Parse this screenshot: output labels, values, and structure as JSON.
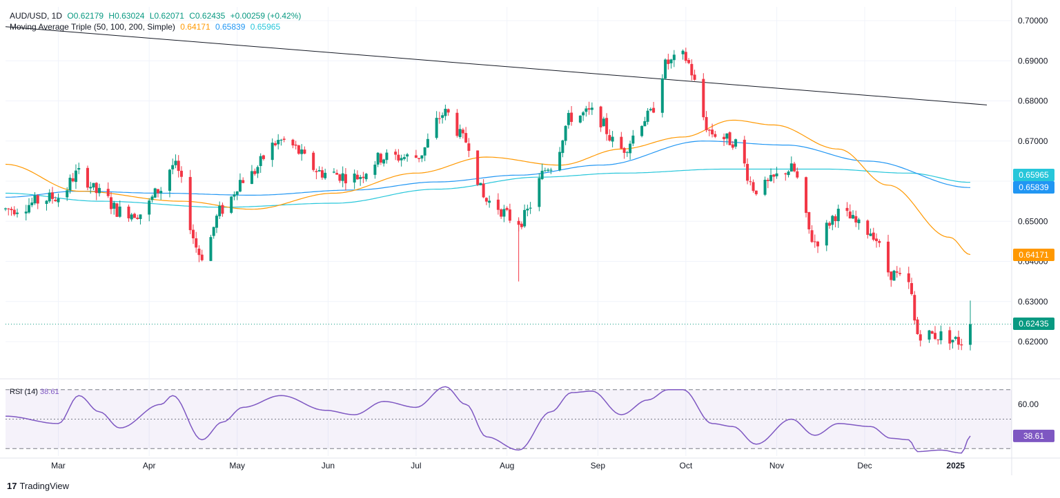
{
  "header": {
    "symbol": "AUD/USD, 1D",
    "open": "O0.62179",
    "high": "H0.63024",
    "low": "L0.62071",
    "close": "C0.62435",
    "change": "+0.00259 (+0.42%)",
    "ma_label": "Moving Average Triple (50, 100, 200, Simple)",
    "ma50": "0.64171",
    "ma100": "0.65839",
    "ma200": "0.65965"
  },
  "rsi_header": {
    "label": "RSI (14)",
    "value": "38.61"
  },
  "brand": {
    "logo_text": "TradingView"
  },
  "colors": {
    "up": "#089981",
    "down": "#f23645",
    "ma50": "#ff9800",
    "ma100": "#2196f3",
    "ma200": "#26c6da",
    "rsi": "#7e57c2",
    "trend": "#131722"
  },
  "chart_data": [
    {
      "type": "candlestick",
      "title": "AUD/USD, 1D",
      "x_labels": [
        "Mar",
        "Apr",
        "May",
        "Jun",
        "Jul",
        "Aug",
        "Sep",
        "Oct",
        "Nov",
        "Dec",
        "2025"
      ],
      "y_ticks": [
        "0.70000",
        "0.69000",
        "0.68000",
        "0.67000",
        "0.66000",
        "0.65000",
        "0.64000",
        "0.63000",
        "0.62000"
      ],
      "ylim": [
        0.6115,
        0.7015
      ],
      "last_price": "0.62435",
      "price_labels": [
        {
          "name": "ma200",
          "value": 0.65965,
          "text": "0.65965"
        },
        {
          "name": "ma100",
          "value": 0.65839,
          "text": "0.65839"
        },
        {
          "name": "ma50",
          "value": 0.64171,
          "text": "0.64171"
        },
        {
          "name": "last",
          "value": 0.62435,
          "text": "0.62435"
        }
      ],
      "trendline": {
        "start": [
          "Feb",
          0.6985
        ],
        "end": [
          "Jan 2025",
          0.679
        ]
      },
      "price_path": [
        [
          "2024-02-12",
          0.653
        ],
        [
          "2024-03-01",
          0.656
        ],
        [
          "2024-03-08",
          0.662
        ],
        [
          "2024-03-15",
          0.657
        ],
        [
          "2024-03-22",
          0.6525
        ],
        [
          "2024-03-29",
          0.652
        ],
        [
          "2024-04-05",
          0.658
        ],
        [
          "2024-04-09",
          0.664
        ],
        [
          "2024-04-19",
          0.6415
        ],
        [
          "2024-04-26",
          0.653
        ],
        [
          "2024-05-03",
          0.6605
        ],
        [
          "2024-05-16",
          0.67
        ],
        [
          "2024-05-31",
          0.662
        ],
        [
          "2024-06-10",
          0.661
        ],
        [
          "2024-06-20",
          0.666
        ],
        [
          "2024-07-01",
          0.666
        ],
        [
          "2024-07-11",
          0.677
        ],
        [
          "2024-07-18",
          0.67
        ],
        [
          "2024-07-25",
          0.655
        ],
        [
          "2024-08-05",
          0.65
        ],
        [
          "2024-08-16",
          0.664
        ],
        [
          "2024-08-23",
          0.676
        ],
        [
          "2024-08-30",
          0.677
        ],
        [
          "2024-09-09",
          0.668
        ],
        [
          "2024-09-18",
          0.676
        ],
        [
          "2024-09-25",
          0.6895
        ],
        [
          "2024-09-30",
          0.691
        ],
        [
          "2024-10-10",
          0.672
        ],
        [
          "2024-10-17",
          0.67
        ],
        [
          "2024-10-25",
          0.658
        ],
        [
          "2024-11-06",
          0.663
        ],
        [
          "2024-11-14",
          0.645
        ],
        [
          "2024-11-22",
          0.652
        ],
        [
          "2024-12-03",
          0.6475
        ],
        [
          "2024-12-10",
          0.637
        ],
        [
          "2024-12-16",
          0.634
        ],
        [
          "2024-12-19",
          0.622
        ],
        [
          "2024-12-27",
          0.6215
        ],
        [
          "2025-01-03",
          0.62
        ],
        [
          "2025-01-06",
          0.6243
        ]
      ],
      "ma50_path": [
        [
          "2024-02-12",
          0.6642
        ],
        [
          "2024-03-08",
          0.6575
        ],
        [
          "2024-04-12",
          0.655
        ],
        [
          "2024-05-06",
          0.653
        ],
        [
          "2024-06-03",
          0.657
        ],
        [
          "2024-07-01",
          0.662
        ],
        [
          "2024-07-25",
          0.666
        ],
        [
          "2024-08-19",
          0.664
        ],
        [
          "2024-09-09",
          0.668
        ],
        [
          "2024-09-30",
          0.671
        ],
        [
          "2024-10-17",
          0.6752
        ],
        [
          "2024-10-31",
          0.674
        ],
        [
          "2024-11-22",
          0.668
        ],
        [
          "2024-12-09",
          0.659
        ],
        [
          "2024-12-30",
          0.646
        ],
        [
          "2025-01-06",
          0.6417
        ]
      ],
      "ma100_path": [
        [
          "2024-02-12",
          0.656
        ],
        [
          "2024-03-08",
          0.6575
        ],
        [
          "2024-04-05",
          0.657
        ],
        [
          "2024-05-06",
          0.6565
        ],
        [
          "2024-06-10",
          0.6578
        ],
        [
          "2024-07-08",
          0.6598
        ],
        [
          "2024-08-05",
          0.6615
        ],
        [
          "2024-09-02",
          0.664
        ],
        [
          "2024-10-07",
          0.67
        ],
        [
          "2024-11-04",
          0.669
        ],
        [
          "2024-12-02",
          0.665
        ],
        [
          "2025-01-06",
          0.6584
        ]
      ],
      "ma200_path": [
        [
          "2024-02-12",
          0.657
        ],
        [
          "2024-03-15",
          0.655
        ],
        [
          "2024-04-26",
          0.6535
        ],
        [
          "2024-06-03",
          0.6545
        ],
        [
          "2024-07-08",
          0.658
        ],
        [
          "2024-08-12",
          0.661
        ],
        [
          "2024-09-09",
          0.662
        ],
        [
          "2024-10-14",
          0.663
        ],
        [
          "2024-11-18",
          0.663
        ],
        [
          "2024-12-16",
          0.662
        ],
        [
          "2025-01-06",
          0.6597
        ]
      ]
    },
    {
      "type": "line",
      "title": "RSI (14)",
      "y_ticks": [
        "60.00"
      ],
      "ylim": [
        25,
        75
      ],
      "bands": [
        30,
        50,
        70
      ],
      "last_value": "38.61",
      "rsi_path": [
        [
          "2024-02-12",
          52
        ],
        [
          "2024-03-01",
          47
        ],
        [
          "2024-03-08",
          66
        ],
        [
          "2024-03-15",
          55
        ],
        [
          "2024-03-22",
          44
        ],
        [
          "2024-04-05",
          60
        ],
        [
          "2024-04-09",
          66
        ],
        [
          "2024-04-19",
          36
        ],
        [
          "2024-04-26",
          48
        ],
        [
          "2024-05-03",
          58
        ],
        [
          "2024-05-16",
          66
        ],
        [
          "2024-05-31",
          56
        ],
        [
          "2024-06-10",
          53
        ],
        [
          "2024-06-20",
          62
        ],
        [
          "2024-07-01",
          58
        ],
        [
          "2024-07-11",
          72
        ],
        [
          "2024-07-18",
          60
        ],
        [
          "2024-07-25",
          38
        ],
        [
          "2024-08-05",
          29
        ],
        [
          "2024-08-16",
          55
        ],
        [
          "2024-08-23",
          68
        ],
        [
          "2024-08-30",
          69
        ],
        [
          "2024-09-09",
          53
        ],
        [
          "2024-09-18",
          63
        ],
        [
          "2024-09-25",
          70
        ],
        [
          "2024-09-30",
          70
        ],
        [
          "2024-10-10",
          47
        ],
        [
          "2024-10-17",
          45
        ],
        [
          "2024-10-25",
          33
        ],
        [
          "2024-11-06",
          50
        ],
        [
          "2024-11-14",
          39
        ],
        [
          "2024-11-22",
          47
        ],
        [
          "2024-12-03",
          45
        ],
        [
          "2024-12-10",
          37
        ],
        [
          "2024-12-16",
          36
        ],
        [
          "2024-12-19",
          28
        ],
        [
          "2024-12-27",
          29
        ],
        [
          "2025-01-03",
          27
        ],
        [
          "2025-01-06",
          38.61
        ]
      ]
    }
  ]
}
